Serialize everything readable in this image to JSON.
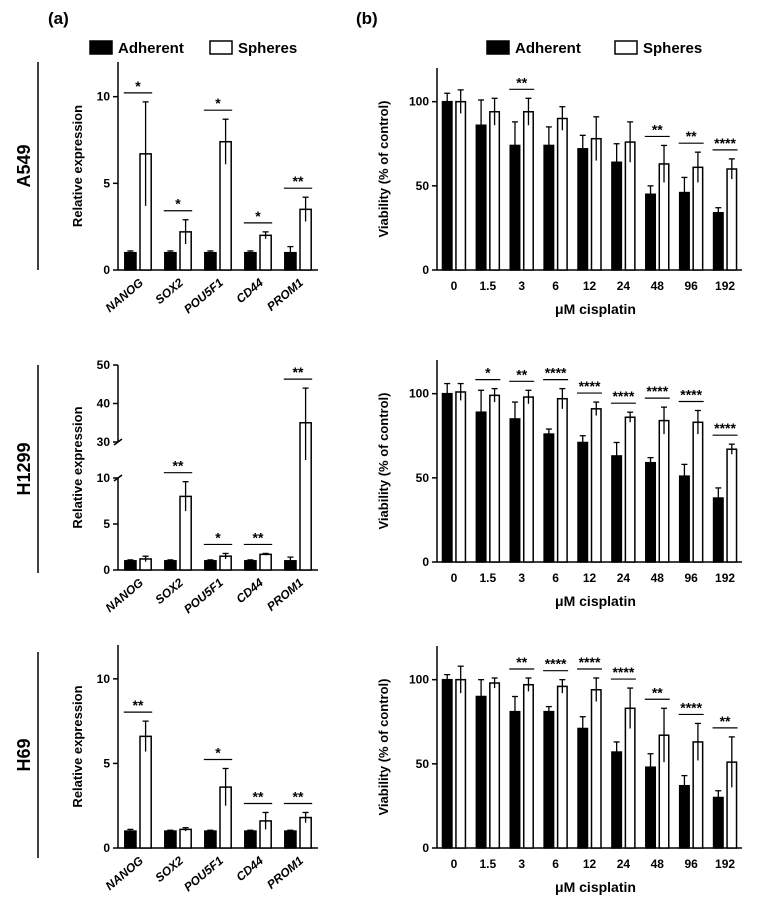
{
  "panel_labels": [
    "(a)",
    "(b)"
  ],
  "row_labels": [
    "A549",
    "H1299",
    "H69"
  ],
  "legend": {
    "series": [
      "Adherent",
      "Spheres"
    ],
    "colors": [
      "#000000",
      "#ffffff"
    ]
  },
  "chart_data": [
    {
      "id": "a549-expression",
      "type": "bar",
      "ylabel": "Relative expression",
      "categories": [
        "NANOG",
        "SOX2",
        "POU5F1",
        "CD44",
        "PROM1"
      ],
      "ylim": [
        0,
        12
      ],
      "yticks": [
        0,
        5,
        10
      ],
      "series": [
        {
          "name": "Adherent",
          "values": [
            1.0,
            1.0,
            1.0,
            1.0,
            1.0
          ],
          "errors": [
            0.1,
            0.1,
            0.1,
            0.1,
            0.35
          ]
        },
        {
          "name": "Spheres",
          "values": [
            6.7,
            2.2,
            7.4,
            2.0,
            3.5
          ],
          "errors": [
            3.0,
            0.7,
            1.3,
            0.2,
            0.7
          ]
        }
      ],
      "significance": [
        "*",
        "*",
        "*",
        "*",
        "**"
      ]
    },
    {
      "id": "a549-viability",
      "type": "bar",
      "ylabel": "Viability (% of control)",
      "xlabel": "μM cisplatin",
      "categories": [
        "0",
        "1.5",
        "3",
        "6",
        "12",
        "24",
        "48",
        "96",
        "192"
      ],
      "ylim": [
        0,
        120
      ],
      "yticks": [
        0,
        50,
        100
      ],
      "series": [
        {
          "name": "Adherent",
          "values": [
            100,
            86,
            74,
            74,
            72,
            64,
            45,
            46,
            34
          ],
          "errors": [
            5,
            15,
            14,
            11,
            8,
            11,
            5,
            9,
            3
          ]
        },
        {
          "name": "Spheres",
          "values": [
            100,
            94,
            94,
            90,
            78,
            76,
            63,
            61,
            60
          ],
          "errors": [
            7,
            8,
            8,
            7,
            13,
            12,
            11,
            9,
            6
          ]
        }
      ],
      "significance": [
        "",
        "",
        "**",
        "",
        "",
        "",
        "**",
        "**",
        "****"
      ]
    },
    {
      "id": "h1299-expression",
      "type": "bar",
      "ylabel": "Relative expression",
      "categories": [
        "NANOG",
        "SOX2",
        "POU5F1",
        "CD44",
        "PROM1"
      ],
      "broken_axis": {
        "lower": [
          0,
          10
        ],
        "upper": [
          30,
          50
        ]
      },
      "yticks": [
        0,
        5,
        10,
        30,
        40,
        50
      ],
      "series": [
        {
          "name": "Adherent",
          "values": [
            1.0,
            1.0,
            1.0,
            1.0,
            1.0
          ],
          "errors": [
            0.1,
            0.1,
            0.1,
            0.1,
            0.4
          ]
        },
        {
          "name": "Spheres",
          "values": [
            1.2,
            8.0,
            1.5,
            1.7,
            35.0
          ],
          "errors": [
            0.3,
            1.6,
            0.3,
            0.1,
            9.0
          ]
        }
      ],
      "significance": [
        "",
        "**",
        "*",
        "**",
        "**"
      ]
    },
    {
      "id": "h1299-viability",
      "type": "bar",
      "ylabel": "Viability (% of control)",
      "xlabel": "μM cisplatin",
      "categories": [
        "0",
        "1.5",
        "3",
        "6",
        "12",
        "24",
        "48",
        "96",
        "192"
      ],
      "ylim": [
        0,
        120
      ],
      "yticks": [
        0,
        50,
        100
      ],
      "series": [
        {
          "name": "Adherent",
          "values": [
            100,
            89,
            85,
            76,
            71,
            63,
            59,
            51,
            38
          ],
          "errors": [
            6,
            13,
            10,
            3,
            4,
            8,
            3,
            7,
            6
          ]
        },
        {
          "name": "Spheres",
          "values": [
            101,
            99,
            98,
            97,
            91,
            86,
            84,
            83,
            67
          ],
          "errors": [
            5,
            4,
            4,
            6,
            4,
            3,
            8,
            7,
            3
          ]
        }
      ],
      "significance": [
        "",
        "*",
        "**",
        "****",
        "****",
        "****",
        "****",
        "****",
        "****"
      ]
    },
    {
      "id": "h69-expression",
      "type": "bar",
      "ylabel": "Relative expression",
      "categories": [
        "NANOG",
        "SOX2",
        "POU5F1",
        "CD44",
        "PROM1"
      ],
      "ylim": [
        0,
        12
      ],
      "yticks": [
        0,
        5,
        10
      ],
      "series": [
        {
          "name": "Adherent",
          "values": [
            1.0,
            1.0,
            1.0,
            1.0,
            1.0
          ],
          "errors": [
            0.1,
            0.05,
            0.05,
            0.05,
            0.05
          ]
        },
        {
          "name": "Spheres",
          "values": [
            6.6,
            1.1,
            3.6,
            1.6,
            1.8
          ],
          "errors": [
            0.9,
            0.1,
            1.1,
            0.5,
            0.3
          ]
        }
      ],
      "significance": [
        "**",
        "",
        "*",
        "**",
        "**"
      ]
    },
    {
      "id": "h69-viability",
      "type": "bar",
      "ylabel": "Viability (% of control)",
      "xlabel": "μM cisplatin",
      "categories": [
        "0",
        "1.5",
        "3",
        "6",
        "12",
        "24",
        "48",
        "96",
        "192"
      ],
      "ylim": [
        0,
        120
      ],
      "yticks": [
        0,
        50,
        100
      ],
      "series": [
        {
          "name": "Adherent",
          "values": [
            100,
            90,
            81,
            81,
            71,
            57,
            48,
            37,
            30
          ],
          "errors": [
            3,
            10,
            9,
            3,
            7,
            6,
            8,
            6,
            4
          ]
        },
        {
          "name": "Spheres",
          "values": [
            100,
            98,
            97,
            96,
            94,
            83,
            67,
            63,
            51
          ],
          "errors": [
            8,
            3,
            4,
            4,
            7,
            12,
            16,
            11,
            15
          ]
        }
      ],
      "significance": [
        "",
        "",
        "**",
        "****",
        "****",
        "****",
        "**",
        "****",
        "**"
      ]
    }
  ]
}
